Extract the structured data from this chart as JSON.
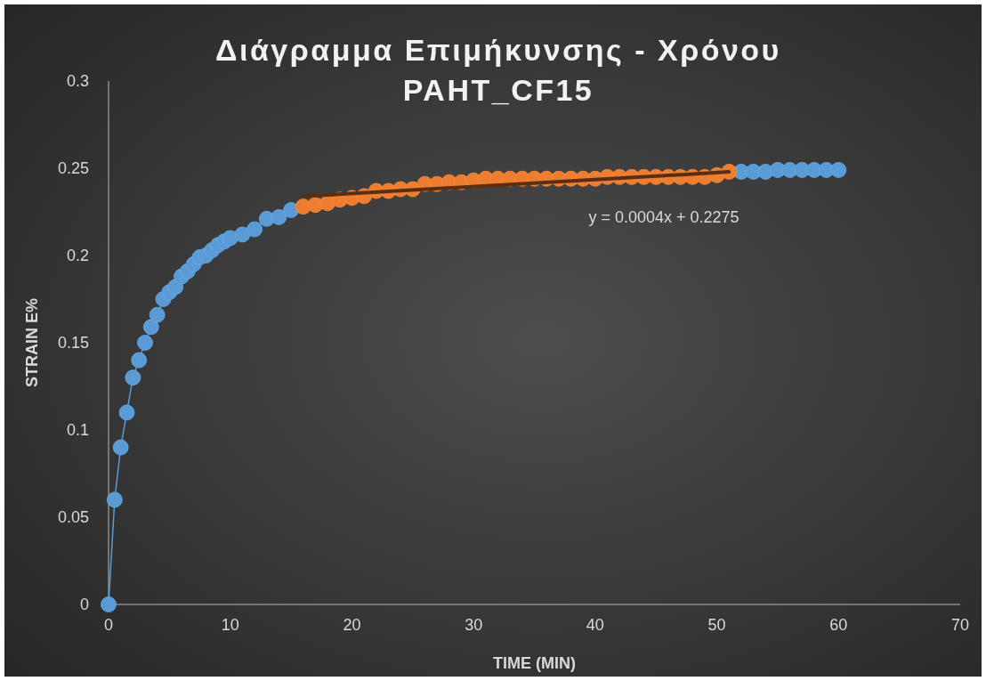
{
  "chart_data": {
    "type": "scatter",
    "title": "Διάγραμμα Επιμήκυνσης - Χρόνου\nPAHT_CF15",
    "xlabel": "TIME (MIN)",
    "ylabel": "STRAIN E%",
    "xlim": [
      0,
      70
    ],
    "xticks": [
      0,
      10,
      20,
      30,
      40,
      50,
      60,
      70
    ],
    "ylim": [
      0,
      0.3
    ],
    "yticks": [
      0,
      0.05,
      0.1,
      0.15,
      0.2,
      0.25,
      0.3
    ],
    "marker": "circle",
    "series": [
      {
        "type": "line",
        "color": "#5b9bd5",
        "x": [
          0,
          0.5,
          1,
          1.5,
          2,
          2.5,
          3,
          3.5,
          4,
          4.5,
          5,
          5.5,
          6,
          6.5,
          7,
          7.5,
          8,
          8.5,
          9,
          9.5,
          10,
          11,
          12,
          13,
          14,
          15
        ],
        "values": [
          0,
          0.06,
          0.09,
          0.11,
          0.13,
          0.14,
          0.15,
          0.159,
          0.166,
          0.175,
          0.179,
          0.182,
          0.188,
          0.191,
          0.195,
          0.199,
          0.2,
          0.203,
          0.206,
          0.208,
          0.21,
          0.212,
          0.215,
          0.221,
          0.222,
          0.226
        ]
      },
      {
        "color": "#5b9bd5",
        "x": [
          52,
          53,
          54,
          55,
          56,
          57,
          58,
          59,
          60
        ],
        "values": [
          0.248,
          0.248,
          0.248,
          0.249,
          0.249,
          0.249,
          0.249,
          0.249,
          0.249
        ]
      },
      {
        "color": "#ed7d31",
        "x": [
          16,
          17,
          18,
          19,
          20,
          21,
          22,
          23,
          24,
          25,
          26,
          27,
          28,
          29,
          30,
          31,
          32,
          33,
          34,
          35,
          36,
          37,
          38,
          39,
          40,
          41,
          42,
          43,
          44,
          45,
          46,
          47,
          48,
          49,
          50,
          51
        ],
        "values": [
          0.228,
          0.229,
          0.23,
          0.232,
          0.233,
          0.234,
          0.237,
          0.237,
          0.238,
          0.238,
          0.241,
          0.241,
          0.242,
          0.242,
          0.243,
          0.244,
          0.244,
          0.244,
          0.244,
          0.244,
          0.244,
          0.244,
          0.244,
          0.244,
          0.244,
          0.245,
          0.245,
          0.245,
          0.245,
          0.245,
          0.245,
          0.245,
          0.245,
          0.245,
          0.246,
          0.248
        ]
      },
      {
        "type": "line",
        "color": "#5a2e10",
        "marker": "none",
        "x": [
          16,
          51
        ],
        "values": [
          0.2339,
          0.2479
        ]
      }
    ],
    "annotations": [
      "y = 0.0004x + 0.2275"
    ]
  }
}
